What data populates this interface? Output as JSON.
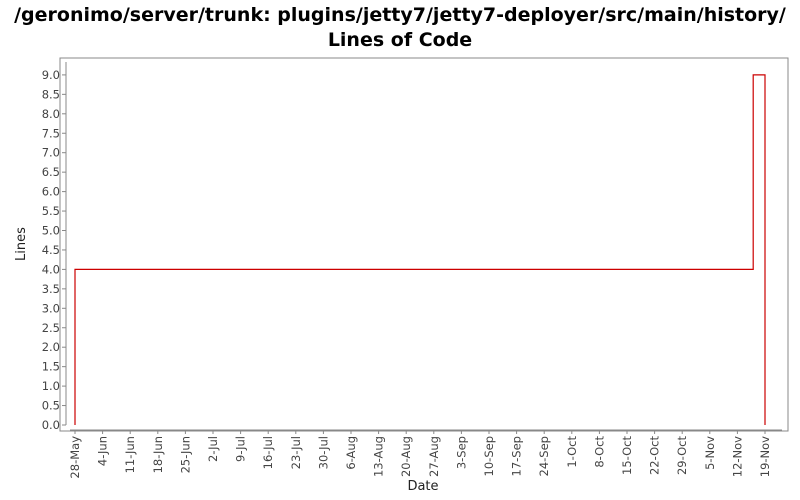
{
  "chart_data": {
    "type": "line",
    "title_line1": "/geronimo/server/trunk: plugins/jetty7/jetty7-deployer/src/main/history/",
    "title_line2": "Lines of Code",
    "xlabel": "Date",
    "ylabel": "Lines",
    "ylim": [
      0,
      9.2
    ],
    "yticks": [
      "0.0",
      "0.5",
      "1.0",
      "1.5",
      "2.0",
      "2.5",
      "3.0",
      "3.5",
      "4.0",
      "4.5",
      "5.0",
      "5.5",
      "6.0",
      "6.5",
      "7.0",
      "7.5",
      "8.0",
      "8.5",
      "9.0"
    ],
    "xticks": [
      "28-May",
      "4-Jun",
      "11-Jun",
      "18-Jun",
      "25-Jun",
      "2-Jul",
      "9-Jul",
      "16-Jul",
      "23-Jul",
      "30-Jul",
      "6-Aug",
      "13-Aug",
      "20-Aug",
      "27-Aug",
      "3-Sep",
      "10-Sep",
      "17-Sep",
      "24-Sep",
      "1-Oct",
      "8-Oct",
      "15-Oct",
      "22-Oct",
      "29-Oct",
      "5-Nov",
      "12-Nov",
      "19-Nov"
    ],
    "grid": false,
    "line_color": "#cc0000",
    "series": [
      {
        "style": "step",
        "points": [
          {
            "x": "28-May",
            "y": 0
          },
          {
            "x": "28-May",
            "y": 4
          },
          {
            "x": "16-Nov",
            "y": 4
          },
          {
            "x": "16-Nov",
            "y": 9
          },
          {
            "x": "19-Nov",
            "y": 9
          },
          {
            "x": "19-Nov",
            "y": 0
          }
        ]
      }
    ]
  }
}
